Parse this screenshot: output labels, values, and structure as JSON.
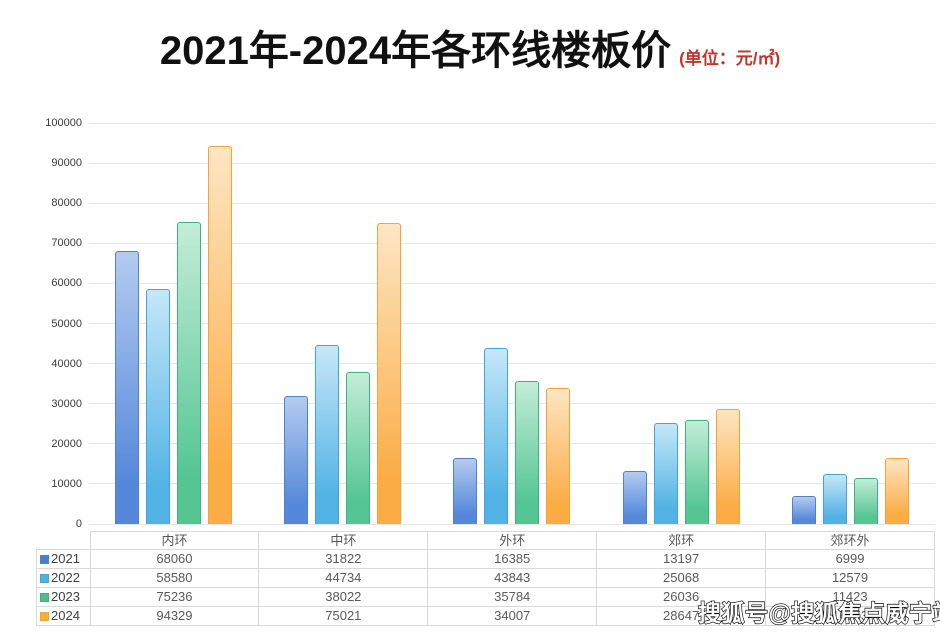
{
  "header": {
    "title": "2021年-2024年各环线楼板价",
    "unit_label": "(单位：元/㎡)"
  },
  "chart_data": {
    "type": "bar",
    "title": "2021年-2024年各环线楼板价",
    "unit": "元/㎡",
    "categories": [
      "内环",
      "中环",
      "外环",
      "郊环",
      "郊环外"
    ],
    "series": [
      {
        "name": "2021",
        "values": [
          68060,
          31822,
          16385,
          13197,
          6999
        ],
        "fill_top": "#b3cbf0",
        "fill_bottom": "#5588da",
        "border": "#4f81c7",
        "swatch": "#4e7cc9"
      },
      {
        "name": "2022",
        "values": [
          58580,
          44734,
          43843,
          25068,
          12579
        ],
        "fill_top": "#c6e7f8",
        "fill_bottom": "#51b2e5",
        "border": "#3fa6d6",
        "swatch": "#53b1e2"
      },
      {
        "name": "2023",
        "values": [
          75236,
          38022,
          35784,
          26036,
          11423
        ],
        "fill_top": "#c3edd7",
        "fill_bottom": "#54c593",
        "border": "#3eb181",
        "swatch": "#4fbe8c"
      },
      {
        "name": "2024",
        "values": [
          94329,
          75021,
          34007,
          28647,
          16553
        ],
        "fill_top": "#fde6c3",
        "fill_bottom": "#fbac45",
        "border": "#f5a238",
        "swatch": "#fbac45"
      }
    ],
    "ylim": [
      0,
      100000
    ],
    "ytick_step": 10000,
    "grid": true,
    "legend_position": "table-rows-left"
  },
  "table": {
    "corner_label": "",
    "columns": [
      "内环",
      "中环",
      "外环",
      "郊环",
      "郊环外"
    ],
    "rows": [
      {
        "year": "2021",
        "values": [
          "68060",
          "31822",
          "16385",
          "13197",
          "6999"
        ]
      },
      {
        "year": "2022",
        "values": [
          "58580",
          "44734",
          "43843",
          "25068",
          "12579"
        ]
      },
      {
        "year": "2023",
        "values": [
          "75236",
          "38022",
          "35784",
          "26036",
          "11423"
        ]
      },
      {
        "year": "2024",
        "values": [
          "94329",
          "75021",
          "34007",
          "28647",
          "16553"
        ]
      }
    ]
  },
  "watermark": {
    "text": "搜狐号@搜狐焦点威宁站"
  }
}
